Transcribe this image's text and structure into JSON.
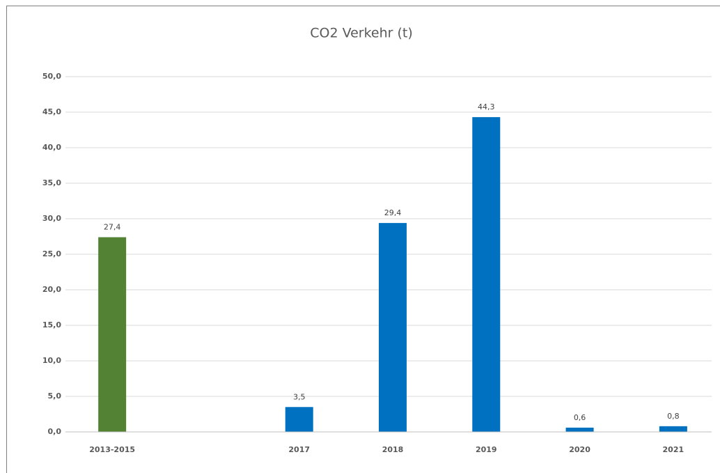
{
  "chart_data": {
    "type": "bar",
    "title": "CO2 Verkehr (t)",
    "categories": [
      "2013-2015",
      null,
      "2017",
      "2018",
      "2019",
      "2020",
      "2021"
    ],
    "values": [
      27.4,
      null,
      3.5,
      29.4,
      44.3,
      0.6,
      0.8
    ],
    "value_labels": [
      "27,4",
      null,
      "3,5",
      "29,4",
      "44,3",
      "0,6",
      "0,8"
    ],
    "colors": [
      "#548235",
      null,
      "#0070c0",
      "#0070c0",
      "#0070c0",
      "#0070c0",
      "#0070c0"
    ],
    "ylim": [
      0,
      50
    ],
    "yticks": [
      {
        "value": 0,
        "label": "0,0"
      },
      {
        "value": 5,
        "label": "5,0"
      },
      {
        "value": 10,
        "label": "10,0"
      },
      {
        "value": 15,
        "label": "15,0"
      },
      {
        "value": 20,
        "label": "20,0"
      },
      {
        "value": 25,
        "label": "25,0"
      },
      {
        "value": 30,
        "label": "30,0"
      },
      {
        "value": 35,
        "label": "35,0"
      },
      {
        "value": 40,
        "label": "40,0"
      },
      {
        "value": 45,
        "label": "45,0"
      },
      {
        "value": 50,
        "label": "50,0"
      }
    ],
    "grid": true
  }
}
